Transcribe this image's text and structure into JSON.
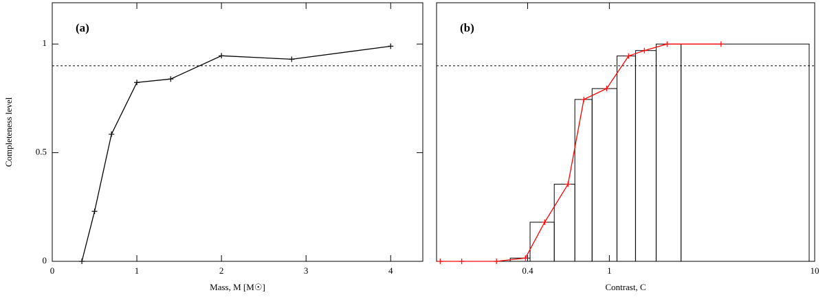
{
  "chart_data": [
    {
      "type": "line",
      "annotation": "(a)",
      "xlabel": "Mass, M [M☉]",
      "ylabel": "Completeness level",
      "xlim": [
        0,
        4.38
      ],
      "ylim": [
        0,
        1.19
      ],
      "xticks": [
        0,
        1,
        2,
        3,
        4
      ],
      "yticks": [
        0,
        0.5,
        1
      ],
      "hline": 0.9,
      "xlog": false,
      "series": [
        {
          "color": "#000000",
          "x": [
            0.35,
            0.5,
            0.7,
            1.0,
            1.4,
            2.0,
            2.83,
            4.0
          ],
          "values": [
            0,
            0.23,
            0.585,
            0.823,
            0.839,
            0.946,
            0.93,
            0.99
          ]
        }
      ]
    },
    {
      "type": "histogram",
      "annotation": "(b)",
      "xlabel": "Contrast, C",
      "xlim": [
        0.144,
        10
      ],
      "ylim": [
        0,
        1.19
      ],
      "xticks": [
        0.4,
        1,
        10
      ],
      "hline": 0.9,
      "xlog": true,
      "bins": [
        0.329,
        0.411,
        0.539,
        0.679,
        0.824,
        1.089,
        1.341,
        1.69,
        2.234,
        9.4
      ],
      "values": [
        0.015,
        0.18,
        0.355,
        0.745,
        0.795,
        0.945,
        0.97,
        1.0,
        1.0
      ],
      "color": "#000000",
      "series": [
        {
          "color": "#ff0000",
          "x": [
            0.15,
            0.191,
            0.282,
            0.39,
            0.484,
            0.629,
            0.751,
            0.97,
            1.24,
            1.48,
            1.91,
            3.5
          ],
          "values": [
            0,
            0,
            0,
            0.015,
            0.18,
            0.355,
            0.745,
            0.795,
            0.945,
            0.97,
            1.0,
            1.0
          ]
        }
      ]
    }
  ]
}
